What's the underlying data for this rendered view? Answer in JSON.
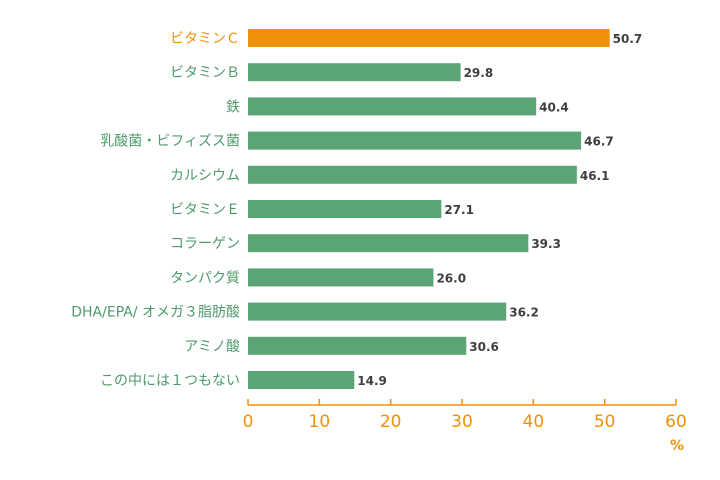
{
  "chart_data": {
    "type": "bar",
    "orientation": "horizontal",
    "categories": [
      "ビタミンＣ",
      "ビタミンＢ",
      "鉄",
      "乳酸菌・ビフィズス菌",
      "カルシウム",
      "ビタミンＥ",
      "コラーゲン",
      "タンパク質",
      "DHA/EPA/ オメガ３脂肪酸",
      "アミノ酸",
      "この中には１つもない"
    ],
    "values": [
      50.7,
      29.8,
      40.4,
      46.7,
      46.1,
      27.1,
      39.3,
      26.0,
      36.2,
      30.6,
      14.9
    ],
    "value_labels": [
      "50.7",
      "29.8",
      "40.4",
      "46.7",
      "46.1",
      "27.1",
      "39.3",
      "26.0",
      "36.2",
      "30.6",
      "14.9"
    ],
    "highlight_index": 0,
    "xlim": [
      0,
      60
    ],
    "x_ticks": [
      "0",
      "10",
      "20",
      "30",
      "40",
      "50",
      "60"
    ],
    "unit": "%",
    "grid": false,
    "colors": {
      "bar": "#5aa476",
      "highlight": "#f0900a",
      "axis": "#f0900a",
      "label": "#4e9a6c",
      "value_text": "#3f3f3f"
    }
  }
}
